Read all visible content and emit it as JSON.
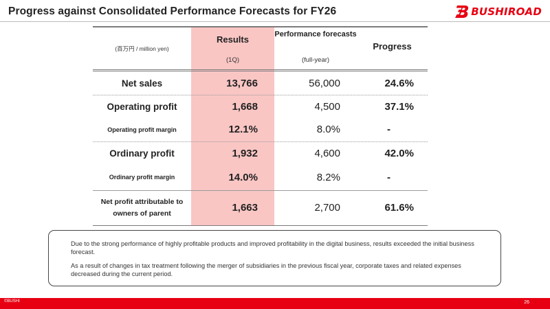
{
  "header": {
    "title": "Progress against Consolidated Performance Forecasts for FY26",
    "logo_text": "BUSHIROAD",
    "brand_color": "#e60012"
  },
  "table": {
    "unit_label": "(百万円 / million yen)",
    "columns": {
      "results": "Results",
      "results_sub": "(1Q)",
      "forecast": "Performance forecasts",
      "forecast_sub": "(full-year)",
      "progress": "Progress"
    },
    "rows": [
      {
        "label": "Net sales",
        "results": "13,766",
        "forecast": "56,000",
        "progress": "24.6%"
      },
      {
        "label": "Operating profit",
        "results": "1,668",
        "forecast": "4,500",
        "progress": "37.1%"
      },
      {
        "label": "Operating profit margin",
        "results": "12.1%",
        "forecast": "8.0%",
        "progress": "-"
      },
      {
        "label": "Ordinary profit",
        "results": "1,932",
        "forecast": "4,600",
        "progress": "42.0%"
      },
      {
        "label": "Ordinary profit margin",
        "results": "14.0%",
        "forecast": "8.2%",
        "progress": "-"
      },
      {
        "label": "Net profit attributable to owners of parent",
        "results": "1,663",
        "forecast": "2,700",
        "progress": "61.6%"
      }
    ],
    "highlight_color": "#f9c6c4"
  },
  "notes": [
    "Due to the strong performance of highly profitable products and improved profitability in the digital business, results exceeded the initial business forecast.",
    "As a result of changes in tax treatment following the merger of subsidiaries in the previous fiscal year, corporate taxes and related expenses decreased during the current period."
  ],
  "footer": {
    "copyright": "©BUSHI",
    "page_number": "26"
  }
}
